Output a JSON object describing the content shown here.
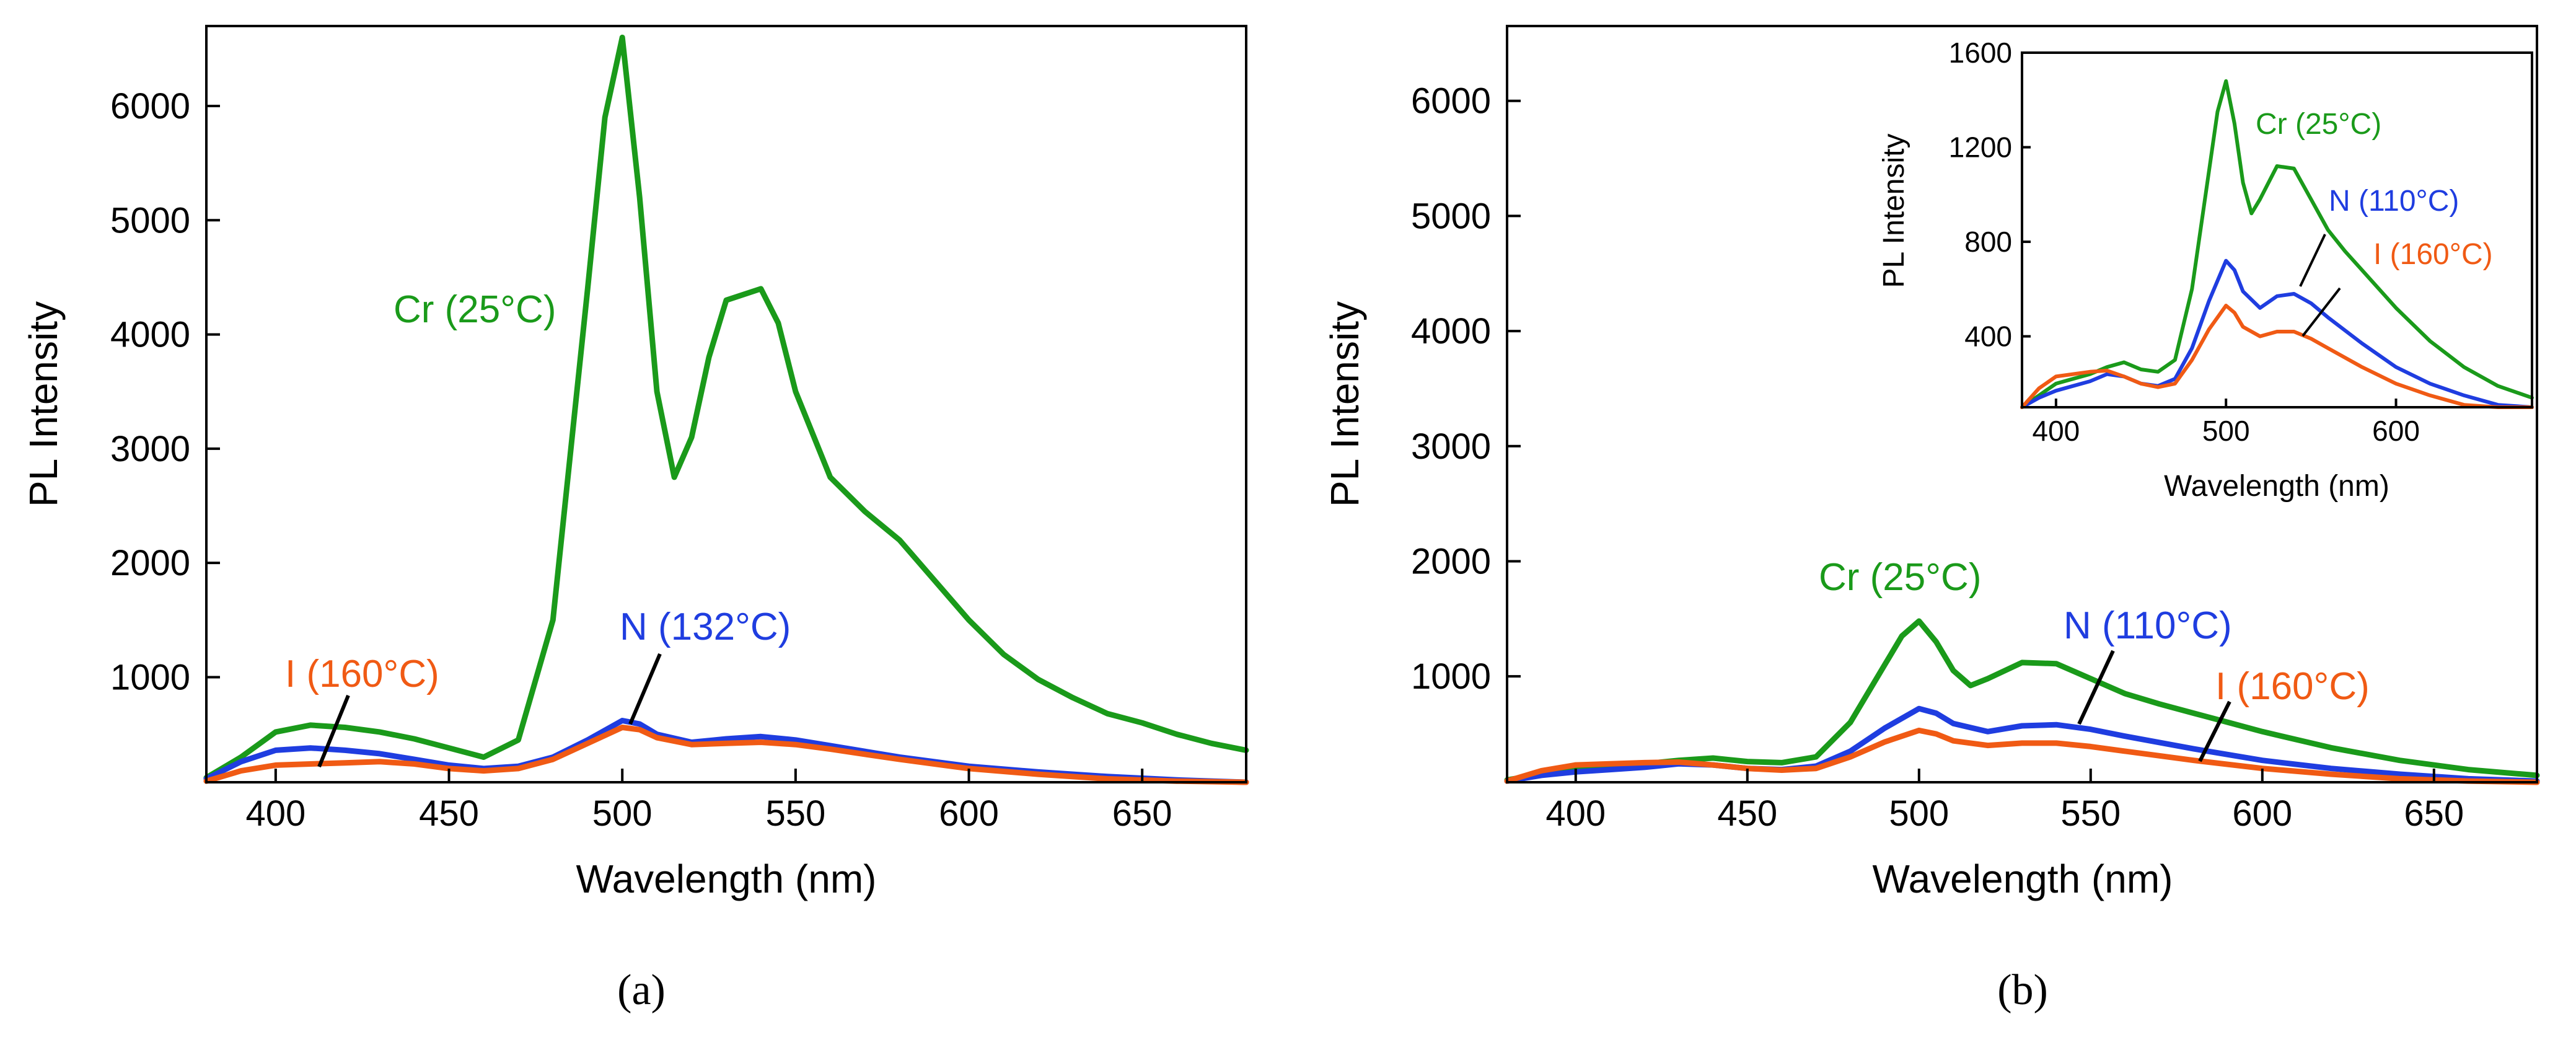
{
  "chart_data": [
    {
      "panel": "a",
      "caption": "(a)",
      "type": "line",
      "xlabel": "Wavelength (nm)",
      "ylabel": "PL Intensity",
      "xlim": [
        380,
        680
      ],
      "ylim": [
        80,
        6700
      ],
      "xticks": [
        400,
        450,
        500,
        550,
        600,
        650
      ],
      "yticks": [
        1000,
        2000,
        3000,
        4000,
        5000,
        6000
      ],
      "series": [
        {
          "name": "Cr",
          "label": "Cr (25°C)",
          "color": "#1a9a1a",
          "x": [
            380,
            390,
            400,
            410,
            420,
            430,
            440,
            450,
            460,
            470,
            480,
            490,
            495,
            500,
            505,
            510,
            515,
            520,
            525,
            530,
            540,
            545,
            550,
            560,
            570,
            580,
            590,
            600,
            610,
            620,
            630,
            640,
            650,
            660,
            670,
            680
          ],
          "y": [
            120,
            300,
            520,
            580,
            560,
            520,
            460,
            380,
            300,
            450,
            1500,
            4400,
            5900,
            6600,
            5200,
            3500,
            2750,
            3100,
            3800,
            4300,
            4400,
            4100,
            3500,
            2750,
            2450,
            2200,
            1850,
            1500,
            1200,
            980,
            820,
            680,
            600,
            500,
            420,
            360
          ]
        },
        {
          "name": "N",
          "label": "N (132°C)",
          "color": "#1f3de0",
          "x": [
            380,
            390,
            400,
            410,
            420,
            430,
            440,
            450,
            460,
            470,
            480,
            490,
            500,
            505,
            510,
            520,
            530,
            540,
            550,
            560,
            580,
            600,
            620,
            640,
            660,
            680
          ],
          "y": [
            110,
            260,
            360,
            380,
            360,
            330,
            280,
            230,
            200,
            220,
            300,
            450,
            620,
            590,
            500,
            430,
            460,
            480,
            450,
            400,
            300,
            220,
            170,
            130,
            100,
            80
          ]
        },
        {
          "name": "I",
          "label": "I (160°C)",
          "color": "#f05a14",
          "x": [
            380,
            390,
            400,
            410,
            420,
            430,
            440,
            450,
            460,
            470,
            480,
            490,
            500,
            505,
            510,
            520,
            530,
            540,
            550,
            560,
            580,
            600,
            620,
            640,
            660,
            680
          ],
          "y": [
            90,
            180,
            230,
            240,
            250,
            260,
            240,
            200,
            180,
            200,
            280,
            420,
            560,
            540,
            470,
            410,
            420,
            430,
            410,
            370,
            280,
            200,
            150,
            110,
            90,
            70
          ]
        }
      ],
      "annotations": [
        {
          "text": "Cr (25°C)",
          "series": "Cr"
        },
        {
          "text": "N (132°C)",
          "series": "N"
        },
        {
          "text": "I (160°C)",
          "series": "I"
        }
      ]
    },
    {
      "panel": "b",
      "caption": "(b)",
      "type": "line",
      "xlabel": "Wavelength (nm)",
      "ylabel": "PL Intensity",
      "xlim": [
        380,
        680
      ],
      "ylim": [
        80,
        6650
      ],
      "xticks": [
        400,
        450,
        500,
        550,
        600,
        650
      ],
      "yticks": [
        1000,
        2000,
        3000,
        4000,
        5000,
        6000
      ],
      "series": [
        {
          "name": "Cr",
          "label": "Cr (25°C)",
          "color": "#1a9a1a",
          "x": [
            380,
            390,
            400,
            410,
            420,
            430,
            440,
            450,
            460,
            470,
            480,
            490,
            495,
            500,
            505,
            510,
            515,
            520,
            530,
            540,
            550,
            560,
            570,
            580,
            590,
            600,
            620,
            640,
            660,
            680
          ],
          "y": [
            100,
            150,
            200,
            220,
            240,
            270,
            290,
            260,
            250,
            300,
            600,
            1100,
            1350,
            1480,
            1300,
            1050,
            920,
            980,
            1120,
            1110,
            980,
            850,
            760,
            680,
            600,
            520,
            380,
            270,
            190,
            140
          ]
        },
        {
          "name": "N",
          "label": "N (110°C)",
          "color": "#1f3de0",
          "x": [
            380,
            390,
            400,
            410,
            420,
            430,
            440,
            450,
            460,
            470,
            480,
            490,
            500,
            505,
            510,
            520,
            530,
            540,
            550,
            560,
            580,
            600,
            620,
            640,
            660,
            680
          ],
          "y": [
            90,
            140,
            170,
            190,
            210,
            240,
            230,
            200,
            190,
            220,
            350,
            550,
            720,
            680,
            590,
            520,
            570,
            580,
            540,
            480,
            370,
            270,
            200,
            150,
            110,
            90
          ]
        },
        {
          "name": "I",
          "label": "I (160°C)",
          "color": "#f05a14",
          "x": [
            380,
            390,
            400,
            410,
            420,
            430,
            440,
            450,
            460,
            470,
            480,
            490,
            500,
            505,
            510,
            520,
            530,
            540,
            550,
            560,
            580,
            600,
            620,
            640,
            660,
            680
          ],
          "y": [
            90,
            180,
            230,
            240,
            250,
            255,
            230,
            200,
            185,
            200,
            300,
            430,
            530,
            500,
            440,
            400,
            420,
            420,
            390,
            350,
            270,
            200,
            150,
            110,
            90,
            70
          ]
        }
      ],
      "annotations": [
        {
          "text": "Cr (25°C)",
          "series": "Cr"
        },
        {
          "text": "N (110°C)",
          "series": "N"
        },
        {
          "text": "I (160°C)",
          "series": "I"
        }
      ],
      "inset": {
        "type": "line",
        "xlabel": "Wavelength (nm)",
        "ylabel": "PL Intensity",
        "xlim": [
          380,
          680
        ],
        "ylim": [
          100,
          1600
        ],
        "xticks": [
          400,
          500,
          600
        ],
        "yticks": [
          400,
          800,
          1200,
          1600
        ],
        "annotations": [
          {
            "text": "Cr (25°C)",
            "series": "Cr"
          },
          {
            "text": "N (110°C)",
            "series": "N"
          },
          {
            "text": "I (160°C)",
            "series": "I"
          }
        ]
      }
    }
  ]
}
